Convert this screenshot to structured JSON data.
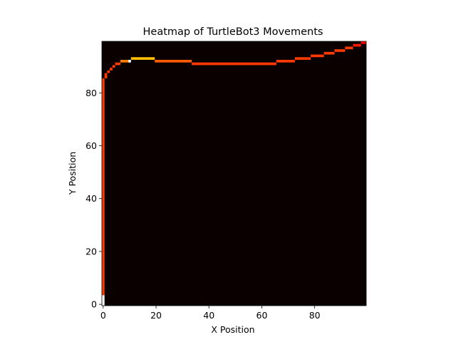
{
  "chart_data": {
    "type": "heatmap",
    "title": "Heatmap of TurtleBot3 Movements",
    "xlabel": "X Position",
    "ylabel": "Y Position",
    "xlim": [
      -0.5,
      99.5
    ],
    "ylim": [
      -0.5,
      99.5
    ],
    "x_ticks": [
      0,
      20,
      40,
      60,
      80
    ],
    "y_ticks": [
      0,
      20,
      40,
      60,
      80
    ],
    "colormap": "hot",
    "background_color": "#0b0000",
    "grid": false,
    "legend": "none",
    "path_segments": [
      {
        "x": [
          0,
          0
        ],
        "y": [
          0,
          3
        ],
        "intensity": 1.0
      },
      {
        "x": [
          0,
          0
        ],
        "y": [
          4,
          85
        ],
        "intensity": 0.45
      },
      {
        "x": [
          1,
          1
        ],
        "y": [
          86,
          87
        ],
        "intensity": 0.45
      },
      {
        "x": [
          2,
          2
        ],
        "y": [
          88,
          88
        ],
        "intensity": 0.45
      },
      {
        "x": [
          3,
          3
        ],
        "y": [
          89,
          89
        ],
        "intensity": 0.45
      },
      {
        "x": [
          4,
          4
        ],
        "y": [
          90,
          90
        ],
        "intensity": 0.45
      },
      {
        "x": [
          5,
          6
        ],
        "y": [
          91,
          91
        ],
        "intensity": 0.45
      },
      {
        "x": [
          7,
          9
        ],
        "y": [
          92,
          92
        ],
        "intensity": 0.55
      },
      {
        "x": [
          10,
          10
        ],
        "y": [
          92,
          92
        ],
        "intensity": 1.0
      },
      {
        "x": [
          11,
          19
        ],
        "y": [
          93,
          93
        ],
        "intensity": 0.65
      },
      {
        "x": [
          20,
          33
        ],
        "y": [
          92,
          92
        ],
        "intensity": 0.5
      },
      {
        "x": [
          34,
          65
        ],
        "y": [
          91,
          91
        ],
        "intensity": 0.45
      },
      {
        "x": [
          66,
          72
        ],
        "y": [
          92,
          92
        ],
        "intensity": 0.45
      },
      {
        "x": [
          73,
          78
        ],
        "y": [
          93,
          93
        ],
        "intensity": 0.45
      },
      {
        "x": [
          79,
          83
        ],
        "y": [
          94,
          94
        ],
        "intensity": 0.45
      },
      {
        "x": [
          84,
          87
        ],
        "y": [
          95,
          95
        ],
        "intensity": 0.45
      },
      {
        "x": [
          88,
          91
        ],
        "y": [
          96,
          96
        ],
        "intensity": 0.45
      },
      {
        "x": [
          92,
          94
        ],
        "y": [
          97,
          97
        ],
        "intensity": 0.45
      },
      {
        "x": [
          95,
          97
        ],
        "y": [
          98,
          98
        ],
        "intensity": 0.4
      },
      {
        "x": [
          98,
          99
        ],
        "y": [
          99,
          99
        ],
        "intensity": 0.35
      }
    ]
  }
}
